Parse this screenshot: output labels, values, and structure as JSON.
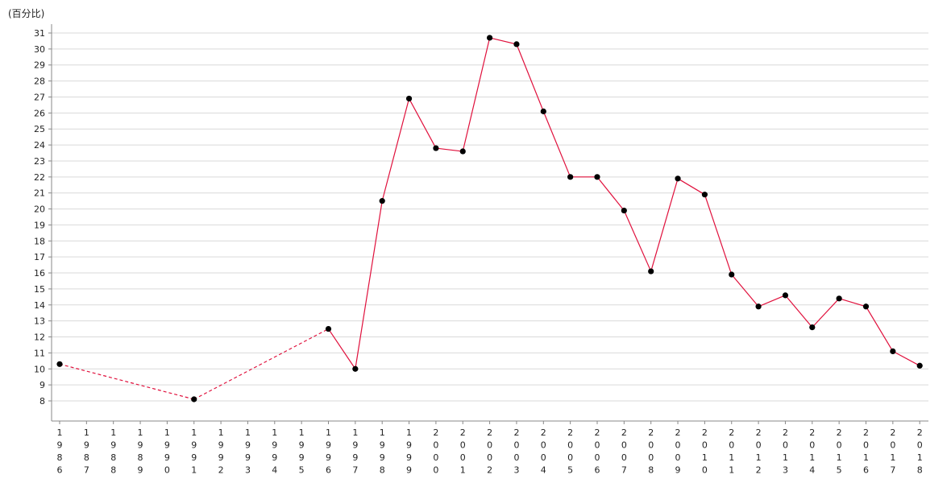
{
  "chart_data": {
    "type": "line",
    "ylabel": "(百分比)",
    "ylim": [
      7,
      31.5
    ],
    "y_ticks": [
      8,
      9,
      10,
      11,
      12,
      13,
      14,
      15,
      16,
      17,
      18,
      19,
      20,
      21,
      22,
      23,
      24,
      25,
      26,
      27,
      28,
      29,
      30,
      31
    ],
    "grid": true,
    "categories": [
      "1986",
      "1987",
      "1988",
      "1989",
      "1990",
      "1991",
      "1992",
      "1993",
      "1994",
      "1995",
      "1996",
      "1997",
      "1998",
      "1999",
      "2000",
      "2001",
      "2002",
      "2003",
      "2004",
      "2005",
      "2006",
      "2007",
      "2008",
      "2009",
      "2010",
      "2011",
      "2012",
      "2013",
      "2014",
      "2015",
      "2016",
      "2017",
      "2018"
    ],
    "series": [
      {
        "color": "#e0103c",
        "points": [
          {
            "x": "1986",
            "y": 10.3
          },
          {
            "x": "1991",
            "y": 8.1
          },
          {
            "x": "1996",
            "y": 12.5
          },
          {
            "x": "1997",
            "y": 10.0
          },
          {
            "x": "1998",
            "y": 20.5
          },
          {
            "x": "1999",
            "y": 26.9
          },
          {
            "x": "2000",
            "y": 23.8
          },
          {
            "x": "2001",
            "y": 23.6
          },
          {
            "x": "2002",
            "y": 30.7
          },
          {
            "x": "2003",
            "y": 30.3
          },
          {
            "x": "2004",
            "y": 26.1
          },
          {
            "x": "2005",
            "y": 22.0
          },
          {
            "x": "2006",
            "y": 22.0
          },
          {
            "x": "2007",
            "y": 19.9
          },
          {
            "x": "2008",
            "y": 16.1
          },
          {
            "x": "2009",
            "y": 21.9
          },
          {
            "x": "2010",
            "y": 20.9
          },
          {
            "x": "2011",
            "y": 15.9
          },
          {
            "x": "2012",
            "y": 13.9
          },
          {
            "x": "2013",
            "y": 14.6
          },
          {
            "x": "2014",
            "y": 12.6
          },
          {
            "x": "2015",
            "y": 14.4
          },
          {
            "x": "2016",
            "y": 13.9
          },
          {
            "x": "2017",
            "y": 11.1
          },
          {
            "x": "2018",
            "y": 10.2
          }
        ],
        "dashed_until": "1996"
      }
    ],
    "marker_color": "#000000"
  }
}
